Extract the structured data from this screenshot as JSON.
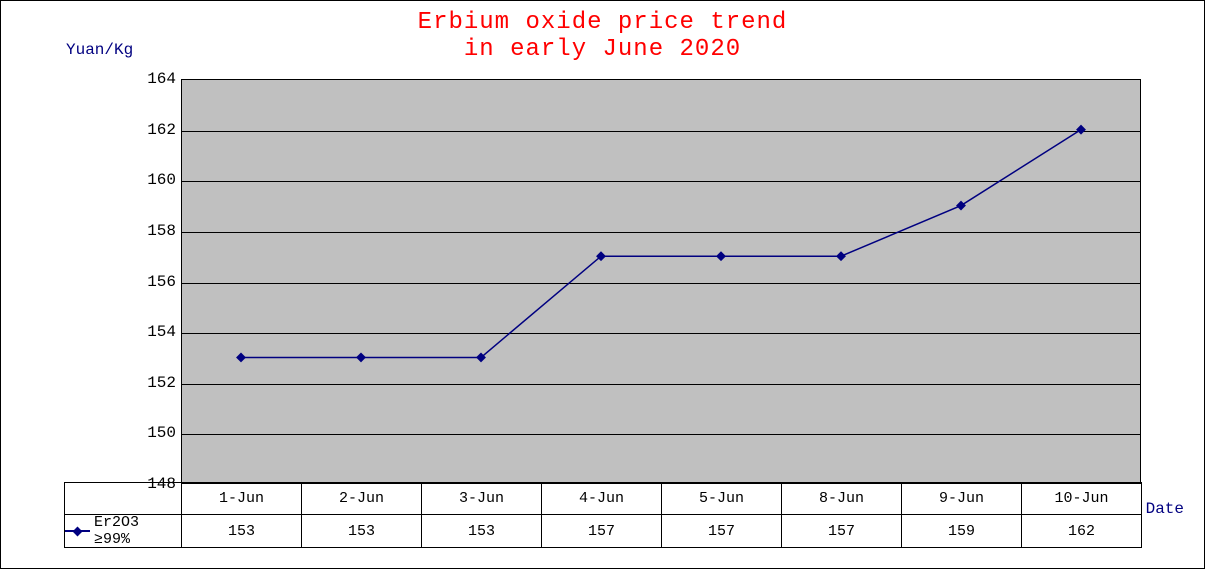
{
  "chart": {
    "type": "line",
    "title_line1": "Erbium oxide price trend",
    "title_line2": "in early June 2020",
    "title_color": "#ff0000",
    "title_fontsize": 24,
    "y_axis_label": "Yuan/Kg",
    "x_axis_label": "Date",
    "axis_label_color": "#000080",
    "axis_label_fontsize": 16,
    "ylim": [
      148,
      164
    ],
    "ytick_step": 2,
    "yticks": [
      148,
      150,
      152,
      154,
      156,
      158,
      160,
      162,
      164
    ],
    "categories": [
      "1-Jun",
      "2-Jun",
      "3-Jun",
      "4-Jun",
      "5-Jun",
      "8-Jun",
      "9-Jun",
      "10-Jun"
    ],
    "series_name": "Er2O3 ≥99%",
    "values": [
      153,
      153,
      153,
      157,
      157,
      157,
      159,
      162
    ],
    "line_color": "#000080",
    "marker_color": "#000080",
    "marker_style": "diamond",
    "marker_size": 7,
    "line_width": 1.5,
    "plot_background": "#c0c0c0",
    "grid_color": "#000000",
    "border_color": "#000000",
    "tick_fontsize": 16
  }
}
